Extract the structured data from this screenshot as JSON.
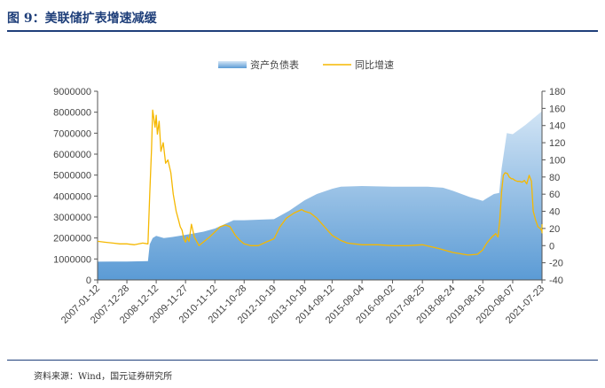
{
  "figure": {
    "title": "图 9：美联储扩表增速减缓",
    "source": "资料来源：Wind，国元证券研究所"
  },
  "colors": {
    "title": "#1f3f7a",
    "area_top": "#d6e7f6",
    "area_bottom": "#5b9bd5",
    "line": "#f5b800"
  },
  "chart_data": {
    "type": "area",
    "legend_placement": "top-center",
    "grid": false,
    "x_ticks": [
      "2007-01-12",
      "2007-12-28",
      "2008-12-12",
      "2009-11-27",
      "2010-11-12",
      "2011-10-28",
      "2012-10-19",
      "2013-10-18",
      "2014-09-12",
      "2015-09-04",
      "2016-09-02",
      "2017-08-25",
      "2018-08-24",
      "2019-08-16",
      "2020-08-07",
      "2021-07-23"
    ],
    "y_left": {
      "min": 0,
      "max": 9000000,
      "ticks": [
        "0",
        "1000000",
        "2000000",
        "3000000",
        "4000000",
        "5000000",
        "6000000",
        "7000000",
        "8000000",
        "9000000"
      ]
    },
    "y_right": {
      "min": -40,
      "max": 180,
      "ticks": [
        "-40",
        "-20",
        "0",
        "20",
        "40",
        "60",
        "80",
        "100",
        "120",
        "140",
        "160",
        "180"
      ]
    },
    "series": [
      {
        "name": "资产负债表",
        "axis": "left",
        "style": "area",
        "x": [
          "2007-01-12",
          "2007-12-28",
          "2008-09-05",
          "2008-09-26",
          "2008-10-31",
          "2008-12-12",
          "2009-03-13",
          "2009-06-26",
          "2009-11-27",
          "2010-06-25",
          "2010-11-12",
          "2011-06-24",
          "2011-10-28",
          "2012-06-29",
          "2012-10-19",
          "2013-04-19",
          "2013-10-18",
          "2014-03-14",
          "2014-09-12",
          "2014-12-26",
          "2015-09-04",
          "2016-09-02",
          "2017-08-25",
          "2017-10-27",
          "2018-04-27",
          "2018-08-24",
          "2019-03-15",
          "2019-08-16",
          "2019-10-04",
          "2019-12-27",
          "2020-02-28",
          "2020-03-27",
          "2020-05-29",
          "2020-08-07",
          "2021-01-08",
          "2021-07-23",
          "2021-09-24"
        ],
        "values": [
          870000,
          880000,
          900000,
          1700000,
          2000000,
          2100000,
          2000000,
          2050000,
          2150000,
          2300000,
          2450000,
          2850000,
          2850000,
          2880000,
          2900000,
          3300000,
          3800000,
          4100000,
          4350000,
          4450000,
          4480000,
          4450000,
          4450000,
          4450000,
          4400000,
          4250000,
          3950000,
          3770000,
          3900000,
          4100000,
          4150000,
          5300000,
          7000000,
          6950000,
          7400000,
          8050000,
          8350000
        ]
      },
      {
        "name": "同比增速",
        "axis": "right",
        "style": "line",
        "x": [
          "2007-01-12",
          "2007-04-06",
          "2007-07-13",
          "2007-10-05",
          "2007-12-28",
          "2008-03-28",
          "2008-07-04",
          "2008-09-05",
          "2008-09-26",
          "2008-10-17",
          "2008-10-31",
          "2008-11-14",
          "2008-11-28",
          "2008-12-12",
          "2008-12-26",
          "2009-01-16",
          "2009-02-06",
          "2009-03-06",
          "2009-04-03",
          "2009-05-01",
          "2009-06-05",
          "2009-07-03",
          "2009-08-07",
          "2009-09-04",
          "2009-09-25",
          "2009-10-16",
          "2009-11-06",
          "2009-11-27",
          "2009-12-18",
          "2010-01-08",
          "2010-02-05",
          "2010-03-12",
          "2010-05-07",
          "2010-07-09",
          "2010-09-10",
          "2010-11-12",
          "2011-01-14",
          "2011-03-18",
          "2011-05-13",
          "2011-07-15",
          "2011-09-09",
          "2011-10-28",
          "2012-01-13",
          "2012-04-13",
          "2012-07-13",
          "2012-10-19",
          "2012-12-28",
          "2013-03-15",
          "2013-06-14",
          "2013-09-13",
          "2013-10-18",
          "2013-12-27",
          "2014-03-14",
          "2014-06-13",
          "2014-09-12",
          "2014-12-26",
          "2015-03-13",
          "2015-09-04",
          "2016-03-11",
          "2016-09-02",
          "2017-03-10",
          "2017-08-25",
          "2018-02-23",
          "2018-08-24",
          "2019-02-22",
          "2019-06-14",
          "2019-08-16",
          "2019-09-13",
          "2019-10-11",
          "2019-11-15",
          "2019-12-13",
          "2020-01-17",
          "2020-02-14",
          "2020-03-06",
          "2020-03-27",
          "2020-04-17",
          "2020-05-08",
          "2020-06-05",
          "2020-06-26",
          "2020-07-24",
          "2020-08-07",
          "2020-09-04",
          "2020-10-02",
          "2020-10-30",
          "2020-11-27",
          "2020-12-25",
          "2021-01-22",
          "2021-02-19",
          "2021-03-19",
          "2021-04-09",
          "2021-05-07",
          "2021-06-04",
          "2021-07-02",
          "2021-07-23",
          "2021-08-20",
          "2021-09-24"
        ],
        "values": [
          5,
          4,
          3,
          2,
          2,
          1,
          3,
          2,
          60,
          112,
          158,
          148,
          138,
          152,
          130,
          145,
          110,
          120,
          96,
          100,
          85,
          60,
          40,
          30,
          22,
          18,
          8,
          4,
          10,
          5,
          25,
          10,
          0,
          5,
          10,
          16,
          22,
          24,
          22,
          12,
          6,
          2,
          0,
          0,
          4,
          8,
          22,
          32,
          38,
          42,
          40,
          38,
          32,
          22,
          12,
          6,
          3,
          1,
          1,
          0,
          0,
          1,
          -3,
          -8,
          -11,
          -10,
          -5,
          0,
          4,
          8,
          11,
          14,
          10,
          30,
          62,
          82,
          85,
          84,
          80,
          78,
          78,
          76,
          75,
          75,
          74,
          76,
          72,
          82,
          75,
          40,
          30,
          22,
          20,
          17,
          15,
          25
        ]
      }
    ]
  }
}
